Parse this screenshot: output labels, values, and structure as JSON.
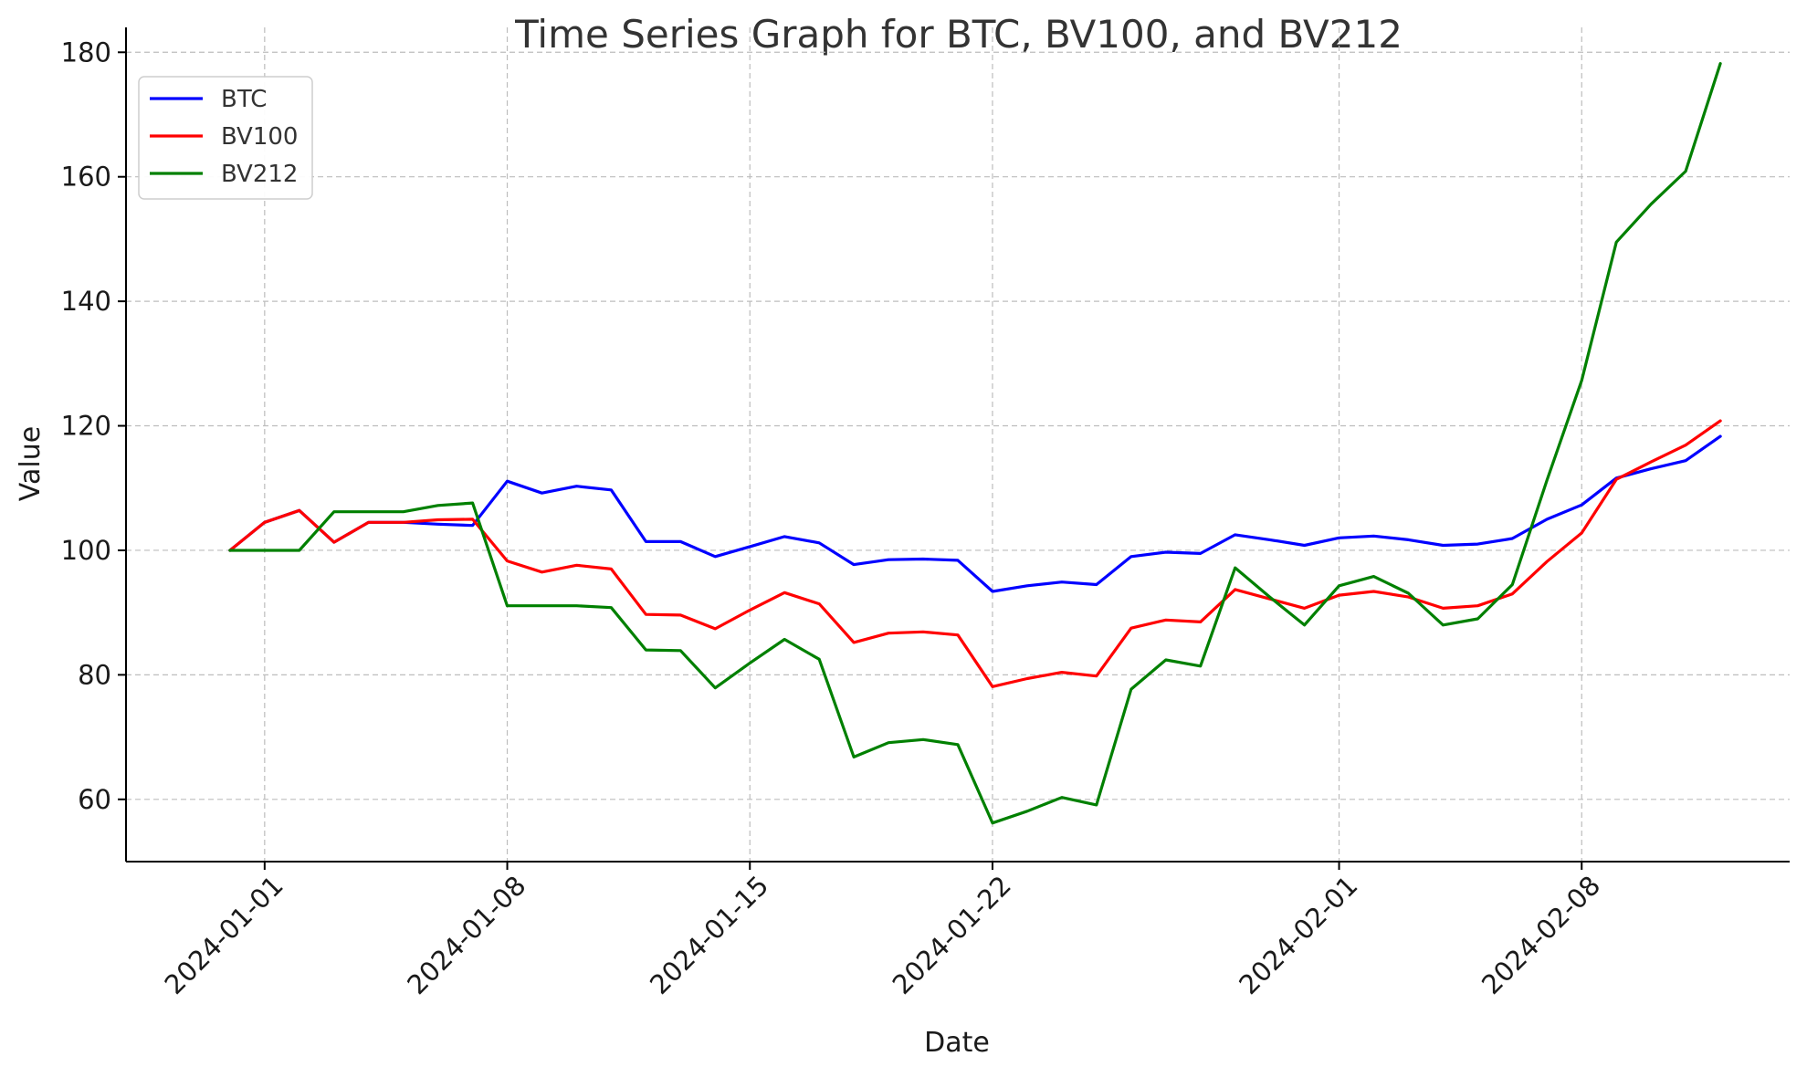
{
  "chart_data": {
    "type": "line",
    "title": "Time Series Graph for BTC, BV100, and BV212",
    "xlabel": "Date",
    "ylabel": "Value",
    "ylim": [
      50,
      184
    ],
    "xlim": [
      "2023-12-28",
      "2024-02-14"
    ],
    "grid": true,
    "legend": "top-left",
    "x_ticks": [
      "2024-01-01",
      "2024-01-08",
      "2024-01-15",
      "2024-01-22",
      "2024-02-01",
      "2024-02-08"
    ],
    "y_ticks": [
      60,
      80,
      100,
      120,
      140,
      160,
      180
    ],
    "x": [
      "2023-12-31",
      "2024-01-01",
      "2024-01-02",
      "2024-01-03",
      "2024-01-04",
      "2024-01-05",
      "2024-01-06",
      "2024-01-07",
      "2024-01-08",
      "2024-01-09",
      "2024-01-10",
      "2024-01-11",
      "2024-01-12",
      "2024-01-13",
      "2024-01-14",
      "2024-01-15",
      "2024-01-16",
      "2024-01-17",
      "2024-01-18",
      "2024-01-19",
      "2024-01-20",
      "2024-01-21",
      "2024-01-22",
      "2024-01-23",
      "2024-01-24",
      "2024-01-25",
      "2024-01-26",
      "2024-01-27",
      "2024-01-28",
      "2024-01-29",
      "2024-01-30",
      "2024-01-31",
      "2024-02-01",
      "2024-02-02",
      "2024-02-03",
      "2024-02-04",
      "2024-02-05",
      "2024-02-06",
      "2024-02-07",
      "2024-02-08",
      "2024-02-09",
      "2024-02-10",
      "2024-02-11",
      "2024-02-12"
    ],
    "series": [
      {
        "name": "BTC",
        "color": "#0000ff",
        "values": [
          100.0,
          104.5,
          106.4,
          101.3,
          104.5,
          104.5,
          104.2,
          104.0,
          111.1,
          109.2,
          110.3,
          109.7,
          101.4,
          101.4,
          99.0,
          100.6,
          102.2,
          101.2,
          97.7,
          98.5,
          98.6,
          98.4,
          93.4,
          94.3,
          94.9,
          94.5,
          99.0,
          99.7,
          99.5,
          102.5,
          101.7,
          100.8,
          102.0,
          102.3,
          101.7,
          100.8,
          101.0,
          101.9,
          105.0,
          107.3,
          111.6,
          113.1,
          114.4,
          118.3
        ]
      },
      {
        "name": "BV100",
        "color": "#ff0000",
        "values": [
          100.0,
          104.5,
          106.4,
          101.3,
          104.5,
          104.5,
          104.9,
          105.0,
          98.3,
          96.5,
          97.6,
          97.0,
          89.7,
          89.6,
          87.4,
          90.4,
          93.2,
          91.4,
          85.2,
          86.7,
          86.9,
          86.4,
          78.1,
          79.4,
          80.4,
          79.8,
          87.5,
          88.8,
          88.5,
          93.7,
          92.2,
          90.7,
          92.8,
          93.4,
          92.5,
          90.7,
          91.1,
          93.0,
          98.2,
          102.8,
          111.4,
          114.2,
          116.9,
          120.8
        ]
      },
      {
        "name": "BV212",
        "color": "#008000",
        "values": [
          100.0,
          100.0,
          100.0,
          106.2,
          106.2,
          106.2,
          107.2,
          107.6,
          91.1,
          91.1,
          91.1,
          90.8,
          84.0,
          83.9,
          77.9,
          81.9,
          85.7,
          82.5,
          66.8,
          69.1,
          69.6,
          68.8,
          56.2,
          58.1,
          60.3,
          59.1,
          77.7,
          82.4,
          81.4,
          97.2,
          92.5,
          88.0,
          94.3,
          95.8,
          93.1,
          88.0,
          89.0,
          94.5,
          111.3,
          127.3,
          149.5,
          155.6,
          160.9,
          178.2
        ]
      }
    ]
  }
}
